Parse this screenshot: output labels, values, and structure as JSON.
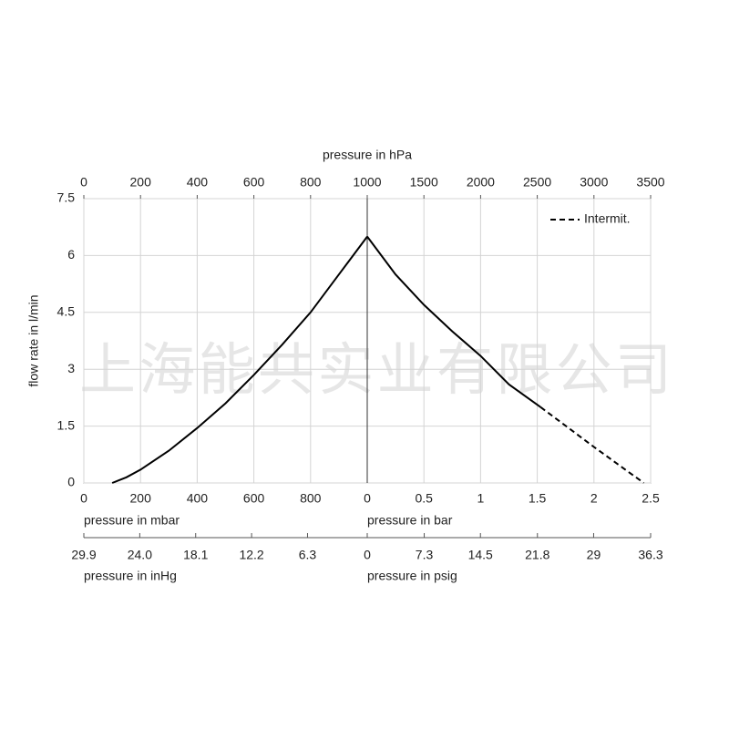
{
  "watermark": "上海能共实业有限公司",
  "chart_data": [
    {
      "type": "line",
      "ylabel": "flow rate in l/min",
      "ylim": [
        0,
        7.5
      ],
      "yticks": [
        0,
        1.5,
        3,
        4.5,
        6,
        7.5
      ],
      "xlabel": "pressure in mbar",
      "xlim": [
        0,
        1000
      ],
      "xticks": [
        0,
        200,
        400,
        600,
        800
      ],
      "x2lim": [
        0,
        1000
      ],
      "x2ticks": [
        0,
        200,
        400,
        600,
        800
      ],
      "x3label": "pressure in inHg",
      "x3lim": [
        29.9,
        0
      ],
      "x3ticks": [
        29.9,
        {
          "value": 24,
          "label": "24.0"
        },
        18.1,
        12.2,
        6.3
      ],
      "grid": true,
      "series": [
        {
          "color": "#000000",
          "dashed": false,
          "x": [
            100,
            150,
            200,
            300,
            400,
            500,
            600,
            700,
            800,
            900,
            1000
          ],
          "values": [
            0,
            0.15,
            0.35,
            0.85,
            1.45,
            2.1,
            2.85,
            3.65,
            4.5,
            5.5,
            6.5
          ]
        }
      ]
    },
    {
      "type": "line",
      "ylim": [
        0,
        7.5
      ],
      "yticks": [
        0,
        1.5,
        3,
        4.5,
        6,
        7.5
      ],
      "xlabel": "pressure in bar",
      "xlim": [
        0,
        2.5
      ],
      "xticks": [
        0,
        0.5,
        1,
        1.5,
        2,
        2.5
      ],
      "x2label": "pressure in hPa",
      "x2lim": [
        1000,
        3500
      ],
      "x2ticks": [
        1000,
        1500,
        2000,
        2500,
        3000,
        3500
      ],
      "x3label": "pressure in psig",
      "x3lim": [
        0,
        36.3
      ],
      "x3ticks": [
        0,
        7.3,
        14.5,
        21.8,
        29,
        36.3
      ],
      "grid": true,
      "legend": "upper right",
      "series": [
        {
          "color": "#000000",
          "dashed": false,
          "x": [
            0,
            0.25,
            0.5,
            0.75,
            1,
            1.25,
            1.53
          ],
          "values": [
            6.5,
            5.5,
            4.7,
            4.0,
            3.35,
            2.6,
            2.0
          ]
        },
        {
          "name": "Intermit.",
          "color": "#000000",
          "dashed": true,
          "x": [
            1.53,
            2.0,
            2.44
          ],
          "values": [
            2.0,
            0.95,
            0
          ]
        }
      ]
    }
  ]
}
